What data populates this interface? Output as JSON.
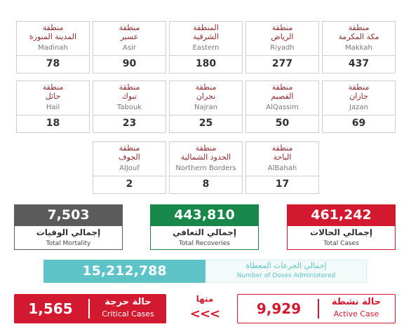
{
  "regions": [
    [
      {
        "arabic": [
          "منطقة",
          "مكة المكرمة"
        ],
        "english": "Makkah",
        "count": 437
      },
      {
        "arabic": [
          "منطقة",
          "الرياض"
        ],
        "english": "Riyadh",
        "count": 277
      },
      {
        "arabic": [
          "المنطقة",
          "الشرقية"
        ],
        "english": "Eastern",
        "count": 180
      },
      {
        "arabic": [
          "منطقة",
          "عسير"
        ],
        "english": "Asir",
        "count": 90
      },
      {
        "arabic": [
          "منطقة",
          "المدينة المنورة"
        ],
        "english": "Madinah",
        "count": 78
      }
    ],
    [
      {
        "arabic": [
          "منطقة",
          "جازان"
        ],
        "english": "Jazan",
        "count": 69
      },
      {
        "arabic": [
          "منطقة",
          "القصيم"
        ],
        "english": "AlQassim",
        "count": 50
      },
      {
        "arabic": [
          "منطقة",
          "نجران"
        ],
        "english": "Najran",
        "count": 25
      },
      {
        "arabic": [
          "منطقة",
          "تبوك"
        ],
        "english": "Tabouk",
        "count": 23
      },
      {
        "arabic": [
          "منطقة",
          "حائل"
        ],
        "english": "Hail",
        "count": 18
      }
    ],
    [
      {
        "arabic": [
          "منطقة",
          "الباحة"
        ],
        "english": "AlBahah",
        "count": 17
      },
      {
        "arabic": [
          "منطقة",
          "الحدود الشمالية"
        ],
        "english": "Northern Borders",
        "count": 8
      },
      {
        "arabic": [
          "منطقة",
          "الجوف"
        ],
        "english": "AlJouf",
        "count": 2
      }
    ]
  ],
  "totals": [
    {
      "value": "461,242",
      "arabic": "إجمالي الحالات",
      "english": "Total Cases",
      "color": "#d3192f"
    },
    {
      "value": "443,810",
      "arabic": "إجمالي التعافي",
      "english": "Total Recoveries",
      "color": "#17884a"
    },
    {
      "value": "7,503",
      "arabic": "إجمالي الوفيات",
      "english": "Total Mortality",
      "color": "#5b5b5b"
    }
  ],
  "doses": {
    "value": "15,212,788",
    "arabic": "إجمالي الجرعات المعطاة",
    "english": "Number of Doses Administered",
    "color": "#5ec3c7"
  },
  "active": {
    "value": "9,929",
    "arabic": "حالة نشطة",
    "english": "Active Case"
  },
  "of_which": "منها",
  "arrows": "<<<",
  "critical": {
    "value": "1,565",
    "arabic": "حالة حرجة",
    "english": "Critical Cases"
  }
}
